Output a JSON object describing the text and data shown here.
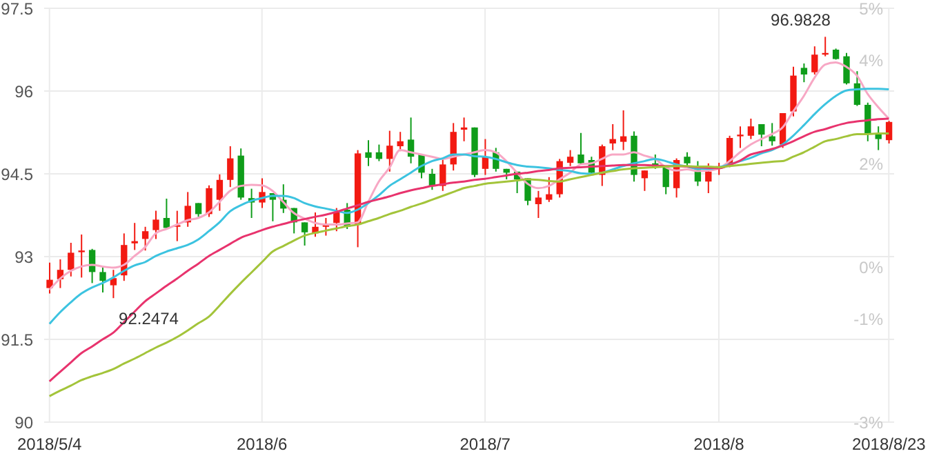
{
  "chart_data": {
    "type": "candlestick",
    "categories": [
      "2018/5/4",
      null,
      null,
      null,
      null,
      null,
      null,
      null,
      null,
      null,
      null,
      null,
      null,
      null,
      null,
      null,
      null,
      null,
      null,
      null,
      "2018/6",
      null,
      null,
      null,
      null,
      null,
      null,
      null,
      null,
      null,
      null,
      null,
      null,
      null,
      null,
      null,
      null,
      null,
      null,
      null,
      null,
      "2018/7",
      null,
      null,
      null,
      null,
      null,
      null,
      null,
      null,
      null,
      null,
      null,
      null,
      null,
      null,
      null,
      null,
      null,
      null,
      null,
      null,
      null,
      "2018/8",
      null,
      null,
      null,
      null,
      null,
      null,
      null,
      null,
      null,
      null,
      null,
      null,
      null,
      null,
      null,
      "2018/8/23"
    ],
    "ohlc": [
      [
        92.43,
        92.89,
        92.33,
        92.58
      ],
      [
        92.59,
        92.95,
        92.43,
        92.76
      ],
      [
        92.76,
        93.25,
        92.64,
        93.07
      ],
      [
        93.08,
        93.4,
        92.62,
        93.11
      ],
      [
        93.12,
        93.14,
        92.52,
        92.72
      ],
      [
        92.72,
        92.8,
        92.35,
        92.56
      ],
      [
        92.48,
        92.76,
        92.2474,
        92.61
      ],
      [
        92.66,
        93.42,
        92.56,
        93.21
      ],
      [
        93.24,
        93.61,
        93.12,
        93.28
      ],
      [
        93.32,
        93.54,
        93.11,
        93.46
      ],
      [
        93.48,
        93.83,
        93.32,
        93.67
      ],
      [
        93.7,
        94.05,
        93.5,
        93.52
      ],
      [
        93.54,
        93.83,
        93.28,
        93.57
      ],
      [
        93.62,
        94.17,
        93.54,
        93.92
      ],
      [
        93.97,
        93.97,
        93.72,
        93.77
      ],
      [
        93.77,
        94.29,
        93.72,
        94.24
      ],
      [
        94.03,
        94.49,
        93.83,
        94.39
      ],
      [
        94.39,
        95.0,
        94.26,
        94.78
      ],
      [
        94.83,
        94.96,
        94.03,
        94.07
      ],
      [
        94.06,
        94.23,
        93.7,
        93.98
      ],
      [
        93.98,
        94.42,
        93.88,
        94.17
      ],
      [
        94.15,
        94.15,
        93.64,
        94.03
      ],
      [
        94.03,
        94.31,
        93.79,
        93.87
      ],
      [
        93.88,
        93.88,
        93.42,
        93.62
      ],
      [
        93.62,
        93.62,
        93.2,
        93.44
      ],
      [
        93.42,
        93.8,
        93.36,
        93.54
      ],
      [
        93.54,
        93.7,
        93.38,
        93.58
      ],
      [
        93.61,
        93.88,
        93.46,
        93.8
      ],
      [
        93.85,
        93.97,
        93.5,
        93.54
      ],
      [
        93.58,
        94.93,
        93.17,
        94.87
      ],
      [
        94.89,
        95.11,
        94.64,
        94.79
      ],
      [
        94.89,
        95.03,
        94.73,
        94.77
      ],
      [
        94.77,
        95.28,
        94.54,
        95.01
      ],
      [
        95.0,
        95.26,
        94.91,
        95.09
      ],
      [
        95.12,
        95.52,
        94.69,
        94.81
      ],
      [
        94.85,
        94.85,
        94.42,
        94.52
      ],
      [
        94.5,
        94.59,
        94.21,
        94.28
      ],
      [
        94.28,
        94.78,
        94.19,
        94.67
      ],
      [
        94.67,
        95.42,
        94.56,
        95.26
      ],
      [
        95.3,
        95.52,
        95.09,
        95.34
      ],
      [
        95.34,
        95.34,
        94.44,
        94.48
      ],
      [
        94.59,
        95.13,
        94.48,
        94.81
      ],
      [
        94.89,
        94.97,
        94.54,
        94.59
      ],
      [
        94.59,
        94.59,
        94.4,
        94.52
      ],
      [
        94.54,
        94.54,
        94.15,
        94.4
      ],
      [
        94.42,
        94.42,
        93.93,
        94.01
      ],
      [
        93.95,
        94.19,
        93.7,
        94.07
      ],
      [
        94.03,
        94.44,
        93.99,
        94.13
      ],
      [
        94.13,
        94.77,
        94.07,
        94.73
      ],
      [
        94.7,
        94.93,
        94.64,
        94.81
      ],
      [
        94.85,
        95.24,
        94.67,
        94.69
      ],
      [
        94.75,
        94.81,
        94.48,
        94.52
      ],
      [
        94.48,
        95.03,
        94.28,
        95.0
      ],
      [
        95.05,
        95.4,
        94.93,
        95.13
      ],
      [
        95.08,
        95.65,
        94.93,
        95.18
      ],
      [
        95.19,
        95.27,
        94.36,
        94.48
      ],
      [
        94.42,
        94.56,
        94.19,
        94.56
      ],
      [
        94.69,
        94.85,
        94.59,
        94.62
      ],
      [
        94.62,
        94.62,
        94.13,
        94.26
      ],
      [
        94.24,
        94.78,
        94.07,
        94.75
      ],
      [
        94.81,
        94.89,
        94.64,
        94.69
      ],
      [
        94.64,
        94.73,
        94.28,
        94.36
      ],
      [
        94.36,
        94.69,
        94.15,
        94.54
      ],
      [
        94.59,
        94.7,
        94.48,
        94.64
      ],
      [
        94.67,
        95.19,
        94.62,
        95.15
      ],
      [
        95.18,
        95.36,
        94.97,
        95.21
      ],
      [
        95.19,
        95.5,
        95.13,
        95.36
      ],
      [
        95.4,
        95.4,
        95.0,
        95.21
      ],
      [
        95.18,
        95.42,
        95.01,
        95.09
      ],
      [
        95.03,
        95.6,
        94.97,
        95.6
      ],
      [
        95.63,
        96.44,
        95.54,
        96.28
      ],
      [
        96.42,
        96.5,
        96.16,
        96.3
      ],
      [
        96.34,
        96.81,
        96.3,
        96.66
      ],
      [
        96.66,
        96.9828,
        96.63,
        96.69
      ],
      [
        96.75,
        96.77,
        96.57,
        96.58
      ],
      [
        96.63,
        96.69,
        96.12,
        96.14
      ],
      [
        96.14,
        96.36,
        95.73,
        95.75
      ],
      [
        95.75,
        95.79,
        95.09,
        95.22
      ],
      [
        95.22,
        95.36,
        94.93,
        95.13
      ],
      [
        95.11,
        95.46,
        95.05,
        95.44
      ]
    ],
    "colors": [
      "#f21a12",
      "#f21a12",
      "#f21a12",
      "#f21a12",
      "#0f9d1a",
      "#0f9d1a",
      "#f21a12",
      "#f21a12",
      "#f21a12",
      "#f21a12",
      "#f21a12",
      "#0f9d1a",
      "#f21a12",
      "#f21a12",
      "#0f9d1a",
      "#f21a12",
      "#f21a12",
      "#f21a12",
      "#0f9d1a",
      "#0f9d1a",
      "#f21a12",
      "#0f9d1a",
      "#0f9d1a",
      "#0f9d1a",
      "#0f9d1a",
      "#f21a12",
      "#f21a12",
      "#f21a12",
      "#0f9d1a",
      "#f21a12",
      "#0f9d1a",
      "#0f9d1a",
      "#f21a12",
      "#f21a12",
      "#0f9d1a",
      "#0f9d1a",
      "#0f9d1a",
      "#f21a12",
      "#f21a12",
      "#f21a12",
      "#0f9d1a",
      "#f21a12",
      "#0f9d1a",
      "#0f9d1a",
      "#0f9d1a",
      "#0f9d1a",
      "#f21a12",
      "#f21a12",
      "#f21a12",
      "#f21a12",
      "#0f9d1a",
      "#0f9d1a",
      "#f21a12",
      "#f21a12",
      "#f21a12",
      "#0f9d1a",
      "#f21a12",
      "#0f9d1a",
      "#0f9d1a",
      "#f21a12",
      "#0f9d1a",
      "#0f9d1a",
      "#f21a12",
      "#f21a12",
      "#f21a12",
      "#f21a12",
      "#f21a12",
      "#0f9d1a",
      "#0f9d1a",
      "#f21a12",
      "#f21a12",
      "#0f9d1a",
      "#f21a12",
      "#f21a12",
      "#0f9d1a",
      "#0f9d1a",
      "#0f9d1a",
      "#0f9d1a",
      "#0f9d1a",
      "#f21a12"
    ],
    "series": [
      {
        "type": "line",
        "color": "#f7a7c4",
        "values": [
          92.4,
          92.6,
          92.74,
          92.82,
          92.85,
          92.82,
          92.8,
          92.85,
          93.01,
          93.17,
          93.42,
          93.5,
          93.58,
          93.66,
          93.7,
          93.8,
          93.99,
          94.19,
          94.28,
          94.3,
          94.29,
          94.19,
          93.99,
          93.79,
          93.69,
          93.61,
          93.58,
          93.58,
          93.6,
          93.62,
          93.99,
          94.36,
          94.61,
          94.93,
          94.89,
          94.85,
          94.81,
          94.77,
          94.81,
          94.85,
          94.89,
          94.93,
          94.89,
          94.73,
          94.52,
          94.32,
          94.24,
          94.28,
          94.4,
          94.52,
          94.67,
          94.69,
          94.77,
          94.85,
          94.85,
          94.89,
          94.83,
          94.77,
          94.62,
          94.56,
          94.58,
          94.55,
          94.56,
          94.6,
          94.73,
          94.89,
          95.03,
          95.13,
          95.22,
          95.34,
          95.63,
          95.91,
          96.24,
          96.48,
          96.52,
          96.44,
          96.28,
          95.95,
          95.71,
          95.5
        ]
      },
      {
        "type": "line",
        "color": "#3cc3e0",
        "values": [
          91.78,
          91.99,
          92.17,
          92.33,
          92.44,
          92.52,
          92.62,
          92.74,
          92.84,
          92.9,
          93.01,
          93.09,
          93.15,
          93.21,
          93.31,
          93.46,
          93.62,
          93.82,
          93.93,
          94.01,
          94.06,
          94.1,
          94.1,
          94.06,
          93.97,
          93.91,
          93.87,
          93.83,
          93.79,
          93.85,
          93.97,
          94.11,
          94.28,
          94.4,
          94.52,
          94.64,
          94.73,
          94.78,
          94.85,
          94.85,
          94.82,
          94.81,
          94.77,
          94.71,
          94.66,
          94.63,
          94.62,
          94.6,
          94.57,
          94.55,
          94.51,
          94.5,
          94.52,
          94.58,
          94.64,
          94.69,
          94.73,
          94.77,
          94.73,
          94.67,
          94.63,
          94.59,
          94.59,
          94.62,
          94.67,
          94.73,
          94.79,
          94.87,
          94.93,
          95.03,
          95.19,
          95.38,
          95.58,
          95.76,
          95.91,
          96.01,
          96.03,
          96.04,
          96.04,
          96.03
        ]
      },
      {
        "type": "line",
        "color": "#e8336d",
        "values": [
          90.74,
          90.91,
          91.08,
          91.25,
          91.37,
          91.5,
          91.62,
          91.81,
          92.0,
          92.19,
          92.33,
          92.47,
          92.6,
          92.74,
          92.87,
          93.01,
          93.12,
          93.23,
          93.34,
          93.41,
          93.48,
          93.54,
          93.59,
          93.64,
          93.68,
          93.72,
          93.76,
          93.81,
          93.87,
          93.93,
          93.99,
          94.04,
          94.09,
          94.15,
          94.2,
          94.24,
          94.28,
          94.31,
          94.34,
          94.36,
          94.39,
          94.41,
          94.44,
          94.47,
          94.5,
          94.52,
          94.55,
          94.57,
          94.6,
          94.61,
          94.62,
          94.63,
          94.64,
          94.65,
          94.66,
          94.66,
          94.66,
          94.65,
          94.64,
          94.64,
          94.63,
          94.62,
          94.61,
          94.6,
          94.66,
          94.74,
          94.85,
          94.9,
          94.95,
          95.01,
          95.09,
          95.18,
          95.26,
          95.31,
          95.37,
          95.42,
          95.45,
          95.47,
          95.49,
          95.5
        ]
      },
      {
        "type": "line",
        "color": "#a3c43a",
        "values": [
          90.47,
          90.57,
          90.66,
          90.76,
          90.83,
          90.89,
          90.96,
          91.06,
          91.15,
          91.25,
          91.35,
          91.44,
          91.54,
          91.66,
          91.79,
          91.91,
          92.11,
          92.32,
          92.52,
          92.71,
          92.9,
          93.09,
          93.19,
          93.29,
          93.38,
          93.43,
          93.47,
          93.51,
          93.55,
          93.58,
          93.64,
          93.7,
          93.77,
          93.83,
          93.9,
          93.96,
          94.03,
          94.1,
          94.17,
          94.24,
          94.28,
          94.32,
          94.34,
          94.36,
          94.38,
          94.4,
          94.39,
          94.37,
          94.36,
          94.4,
          94.44,
          94.48,
          94.52,
          94.55,
          94.58,
          94.6,
          94.61,
          94.62,
          94.63,
          94.64,
          94.64,
          94.63,
          94.63,
          94.62,
          94.64,
          94.66,
          94.68,
          94.7,
          94.72,
          94.73,
          94.81,
          94.89,
          94.99,
          95.09,
          95.13,
          95.18,
          95.22,
          95.22,
          95.23,
          95.23
        ]
      }
    ],
    "ylim": [
      90,
      97.5
    ],
    "yticks": [
      90,
      91.5,
      93,
      94.5,
      96,
      97.5
    ],
    "y2lim": [
      -3,
      5
    ],
    "y2ticks": [
      {
        "value": -3,
        "label": "-3%"
      },
      {
        "value": -1,
        "label": "-1%"
      },
      {
        "value": 0,
        "label": "0%"
      },
      {
        "value": 2,
        "label": "2%"
      },
      {
        "value": 4,
        "label": "4%"
      },
      {
        "value": 5,
        "label": "5%"
      }
    ],
    "grid": true,
    "annotations": [
      "96.9828",
      "92.2474"
    ]
  }
}
